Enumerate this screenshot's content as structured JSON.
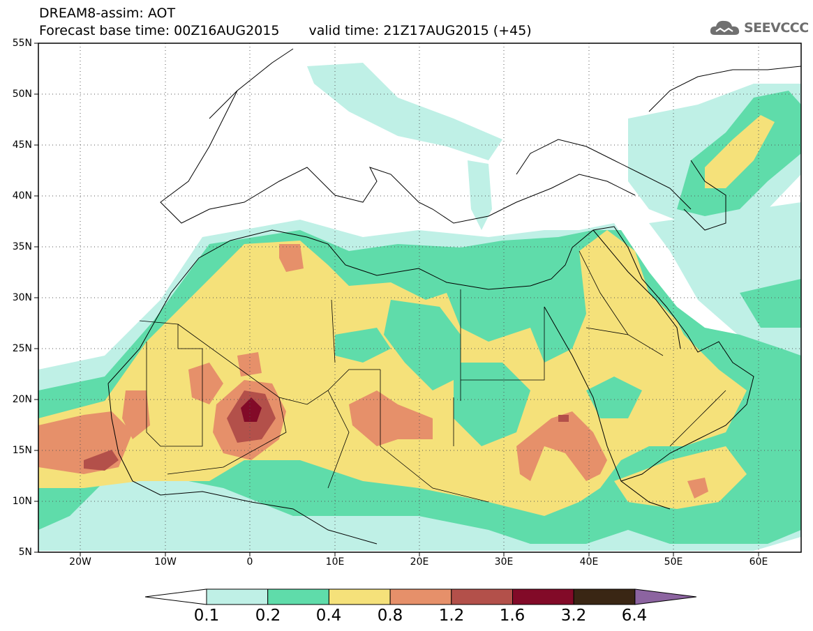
{
  "header": {
    "line1": "DREAM8-assim: AOT",
    "base_time": "Forecast base time: 00Z16AUG2015",
    "valid_time": "valid time: 21Z17AUG2015 (+45)"
  },
  "logo": {
    "text": "SEEVCCC",
    "icon": "cloud-icon"
  },
  "map": {
    "projection": "lat-lon",
    "lon_range": [
      -25,
      65
    ],
    "lat_range": [
      5,
      55
    ],
    "y_ticks": [
      "55N",
      "50N",
      "45N",
      "40N",
      "35N",
      "30N",
      "25N",
      "20N",
      "15N",
      "10N",
      "5N"
    ],
    "x_ticks": [
      "20W",
      "10W",
      "0",
      "10E",
      "20E",
      "30E",
      "40E",
      "50E",
      "60E"
    ],
    "grid": "dotted",
    "region": "North Africa, Mediterranean, Europe, Middle East"
  },
  "legend": {
    "labels": [
      "0.1",
      "0.2",
      "0.4",
      "0.8",
      "1.2",
      "1.6",
      "3.2",
      "6.4"
    ],
    "colors": [
      "#ffffff",
      "#bff0e6",
      "#5fdcaa",
      "#f5e17a",
      "#e6906a",
      "#b3504a",
      "#820a28",
      "#3a2614",
      "#8c64a0"
    ]
  }
}
